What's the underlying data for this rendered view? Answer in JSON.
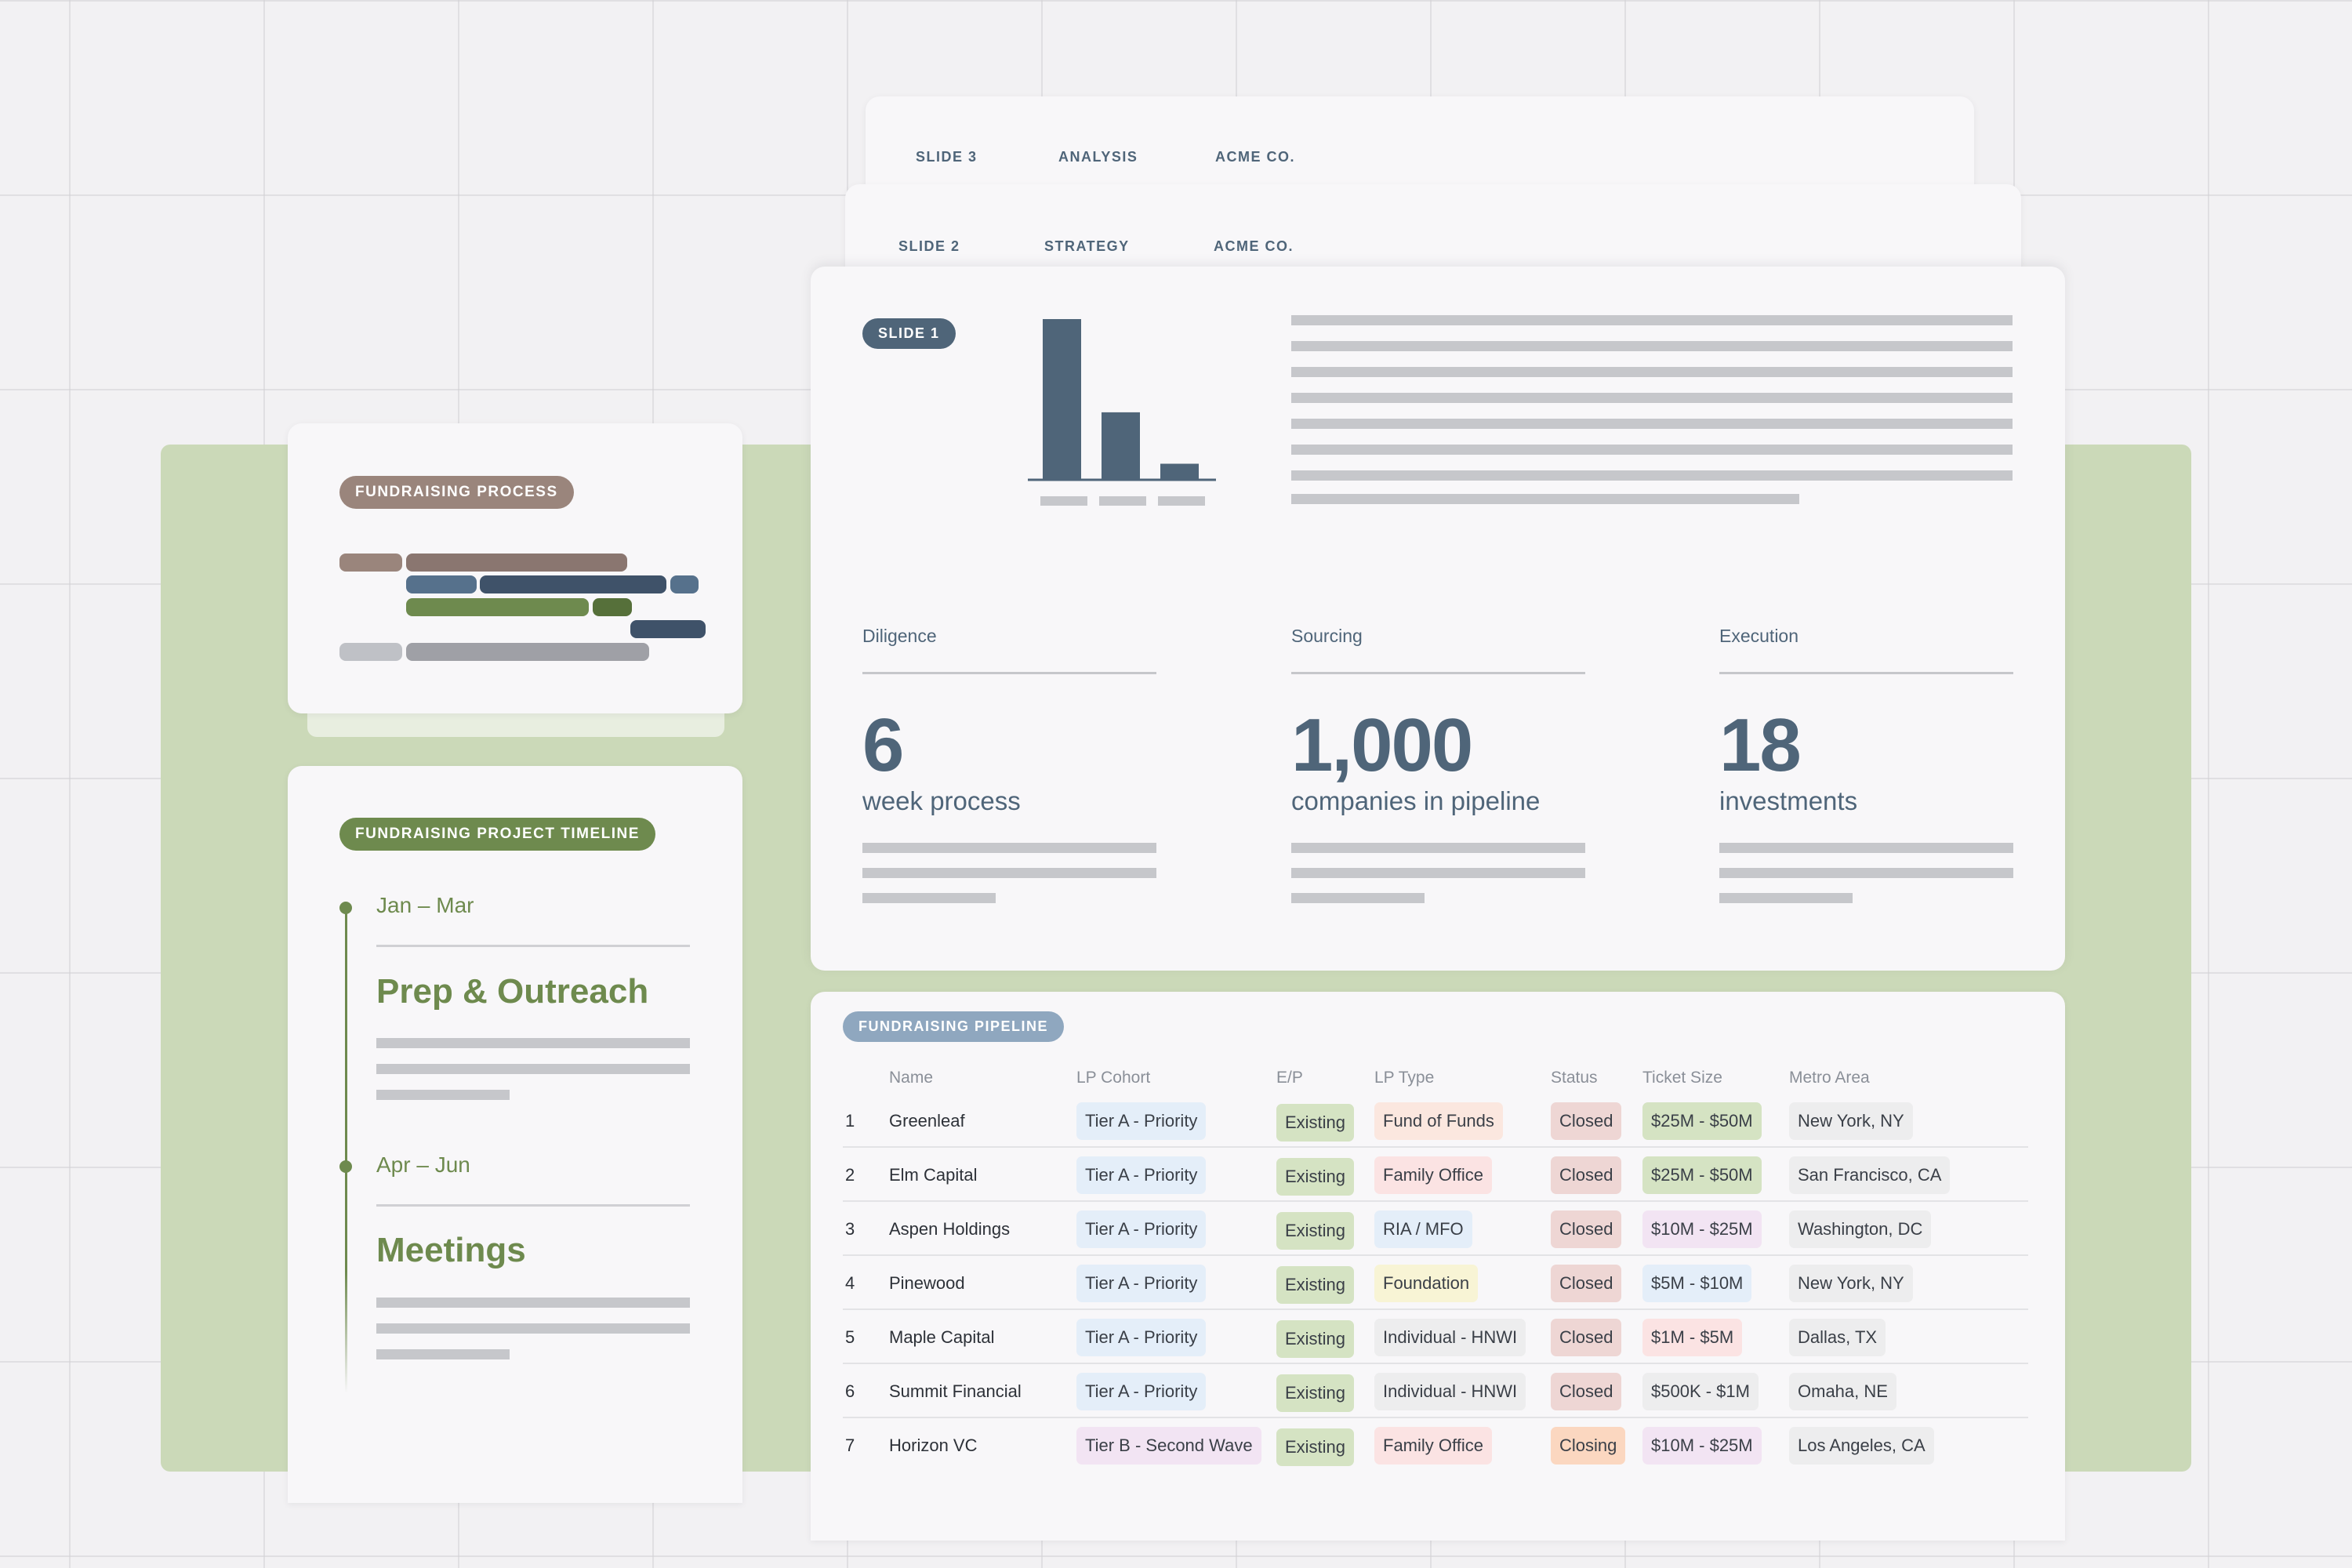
{
  "slides": {
    "slide3": {
      "num": "SLIDE 3",
      "section": "ANALYSIS",
      "company": "ACME CO."
    },
    "slide2": {
      "num": "SLIDE 2",
      "section": "STRATEGY",
      "company": "ACME CO."
    },
    "slide1": {
      "badge": "SLIDE 1",
      "chart_data": {
        "type": "bar",
        "categories": [
          "",
          "",
          ""
        ],
        "values": [
          100,
          42,
          10
        ],
        "ylim": [
          0,
          100
        ],
        "color": "#4f6579"
      },
      "stats": [
        {
          "label": "Diligence",
          "value": "6",
          "caption": "week process"
        },
        {
          "label": "Sourcing",
          "value": "1,000",
          "caption": "companies in pipeline"
        },
        {
          "label": "Execution",
          "value": "18",
          "caption": "investments"
        }
      ]
    }
  },
  "process_card": {
    "badge": "FUNDRAISING PROCESS"
  },
  "timeline_card": {
    "badge": "FUNDRAISING PROJECT TIMELINE",
    "phases": [
      {
        "date": "Jan – Mar",
        "title": "Prep & Outreach"
      },
      {
        "date": "Apr – Jun",
        "title": "Meetings"
      }
    ]
  },
  "pipeline": {
    "badge": "FUNDRAISING PIPELINE",
    "columns": [
      "Name",
      "LP Cohort",
      "E/P",
      "LP Type",
      "Status",
      "Ticket Size",
      "Metro Area"
    ],
    "rows": [
      {
        "num": "1",
        "name": "Greenleaf",
        "cohort": "Tier A - Priority",
        "ep": "Existing",
        "type": "Fund of Funds",
        "status": "Closed",
        "ticket": "$25M - $50M",
        "metro": "New York, NY"
      },
      {
        "num": "2",
        "name": "Elm Capital",
        "cohort": "Tier A - Priority",
        "ep": "Existing",
        "type": "Family Office",
        "status": "Closed",
        "ticket": "$25M - $50M",
        "metro": "San Francisco, CA"
      },
      {
        "num": "3",
        "name": "Aspen Holdings",
        "cohort": "Tier A - Priority",
        "ep": "Existing",
        "type": "RIA / MFO",
        "status": "Closed",
        "ticket": "$10M - $25M",
        "metro": "Washington, DC"
      },
      {
        "num": "4",
        "name": "Pinewood",
        "cohort": "Tier A - Priority",
        "ep": "Existing",
        "type": "Foundation",
        "status": "Closed",
        "ticket": "$5M - $10M",
        "metro": "New York, NY"
      },
      {
        "num": "5",
        "name": "Maple Capital",
        "cohort": "Tier A - Priority",
        "ep": "Existing",
        "type": "Individual - HNWI",
        "status": "Closed",
        "ticket": "$1M - $5M",
        "metro": "Dallas, TX"
      },
      {
        "num": "6",
        "name": "Summit Financial",
        "cohort": "Tier A - Priority",
        "ep": "Existing",
        "type": "Individual - HNWI",
        "status": "Closed",
        "ticket": "$500K - $1M",
        "metro": "Omaha, NE"
      },
      {
        "num": "7",
        "name": "Horizon VC",
        "cohort": "Tier B - Second Wave",
        "ep": "Existing",
        "type": "Family Office",
        "status": "Closing",
        "ticket": "$10M - $25M",
        "metro": "Los Angeles, CA"
      }
    ]
  },
  "colors": {
    "slate": "#4f6579",
    "olive": "#6e8a4e",
    "mauve": "#9a857c",
    "steel": "#8fa7bf",
    "panel_green": "#cbd9b8"
  }
}
